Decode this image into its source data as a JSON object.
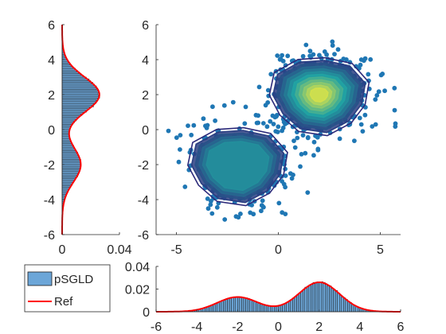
{
  "chart_data": [
    {
      "type": "scatter",
      "panel": "joint",
      "title": "",
      "xlabel": "",
      "ylabel": "",
      "xlim": [
        -6,
        6
      ],
      "ylim": [
        -6,
        6
      ],
      "xticks": [
        "-5",
        "0",
        "5"
      ],
      "yticks": [
        "-6",
        "-4",
        "-2",
        "0",
        "2",
        "4",
        "6"
      ],
      "grid": false,
      "colors": {
        "points": "#1f77b4",
        "contour_low": "#2c2a7a",
        "contour_mid": "#21a3a3",
        "contour_high": "#f6ec3a"
      },
      "series": [
        {
          "role": "samples",
          "components": [
            {
              "center": [
                2,
                2
              ],
              "spread": 1.2,
              "count": 520
            },
            {
              "center": [
                -2,
                -2
              ],
              "spread": 1.2,
              "count": 440
            }
          ]
        },
        {
          "role": "density contours",
          "modes": [
            [
              2,
              2
            ],
            [
              -2,
              -2
            ]
          ],
          "mode_levels": [
            1.0,
            0.5
          ]
        }
      ]
    },
    {
      "type": "bar",
      "panel": "marginal-x",
      "title": "",
      "xlabel": "",
      "ylabel": "",
      "xlim": [
        -6,
        6
      ],
      "ylim": [
        0,
        0.04
      ],
      "xticks": [
        "-6",
        "-4",
        "-2",
        "0",
        "2",
        "4",
        "6"
      ],
      "yticks": [
        "0",
        "0.02",
        "0.04"
      ],
      "grid": false,
      "bar_color": "#6ca6d8",
      "ref_color": "#ff0000",
      "modes": [
        -2,
        2
      ],
      "mode_heights": [
        0.013,
        0.026
      ],
      "sigma": 1
    },
    {
      "type": "bar",
      "panel": "marginal-y",
      "orientation": "horizontal",
      "title": "",
      "xlabel": "",
      "ylabel": "",
      "xlim": [
        0,
        0.04
      ],
      "ylim": [
        -6,
        6
      ],
      "xticks": [
        "0",
        "0.04"
      ],
      "yticks": [
        "-6",
        "-4",
        "-2",
        "0",
        "2",
        "4",
        "6"
      ],
      "grid": false,
      "bar_color": "#6ca6d8",
      "ref_color": "#ff0000",
      "modes": [
        -2,
        2
      ],
      "mode_heights": [
        0.013,
        0.026
      ],
      "sigma": 1
    }
  ],
  "legend": {
    "entries": [
      {
        "label": "pSGLD",
        "swatch": "#6ca6d8"
      },
      {
        "label": "Ref",
        "line": "#ff0000"
      }
    ]
  }
}
